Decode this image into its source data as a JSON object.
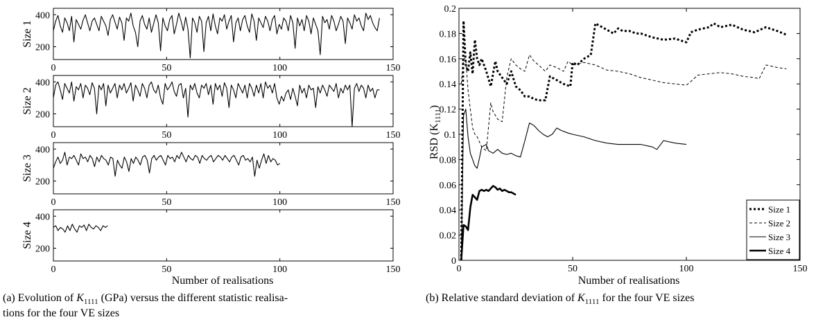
{
  "chart_data": [
    {
      "type": "line",
      "panel": "a",
      "caption_parts": [
        "(a) Evolution of ",
        "K",
        "1111",
        " (GPa) versus the different statistic realisa-"
      ],
      "caption_line2": "tions for the four VE sizes",
      "xlabel": "Number of realisations",
      "xlim": [
        0,
        150
      ],
      "x_ticks": [
        "0",
        "50",
        "100",
        "150"
      ],
      "subplots": [
        {
          "ylabel": "Size 1",
          "ylim": [
            120,
            440
          ],
          "y_ticks": [
            "200",
            "400"
          ],
          "n": 144,
          "values": [
            300,
            360,
            395,
            330,
            290,
            380,
            350,
            300,
            390,
            230,
            370,
            340,
            310,
            365,
            400,
            350,
            300,
            360,
            380,
            340,
            300,
            390,
            360,
            330,
            270,
            370,
            400,
            355,
            310,
            385,
            350,
            240,
            380,
            360,
            410,
            330,
            290,
            200,
            360,
            395,
            340,
            310,
            380,
            290,
            345,
            400,
            350,
            175,
            380,
            330,
            300,
            370,
            395,
            280,
            340,
            410,
            360,
            300,
            385,
            310,
            130,
            380,
            350,
            290,
            390,
            360,
            170,
            350,
            390,
            300,
            405,
            330,
            280,
            380,
            360,
            400,
            310,
            360,
            395,
            230,
            350,
            380,
            300,
            370,
            395,
            330,
            290,
            405,
            360,
            240,
            380,
            350,
            320,
            390,
            360,
            300,
            370,
            395,
            280,
            340,
            310,
            380,
            360,
            300,
            395,
            350,
            190,
            380,
            330,
            370,
            300,
            395,
            360,
            280,
            380,
            340,
            300,
            150,
            390,
            350,
            370,
            310,
            395,
            360,
            300,
            340,
            390,
            360,
            220,
            380,
            350,
            310,
            400,
            360,
            380,
            330,
            300,
            410,
            370,
            395,
            350,
            320,
            300,
            380
          ]
        },
        {
          "ylabel": "Size 2",
          "ylim": [
            120,
            440
          ],
          "y_ticks": [
            "200",
            "400"
          ],
          "n": 144,
          "values": [
            300,
            380,
            400,
            350,
            290,
            390,
            360,
            330,
            400,
            280,
            370,
            350,
            390,
            300,
            380,
            360,
            320,
            395,
            360,
            200,
            380,
            350,
            390,
            250,
            380,
            330,
            360,
            390,
            300,
            380,
            350,
            390,
            330,
            360,
            395,
            280,
            380,
            350,
            310,
            390,
            360,
            300,
            380,
            400,
            350,
            330,
            380,
            300,
            260,
            390,
            350,
            370,
            400,
            340,
            310,
            380,
            390,
            300,
            360,
            180,
            380,
            350,
            390,
            330,
            300,
            380,
            360,
            390,
            320,
            380,
            260,
            390,
            350,
            380,
            310,
            395,
            360,
            240,
            380,
            350,
            300,
            390,
            360,
            330,
            380,
            300,
            390,
            360,
            310,
            380,
            330,
            390,
            300,
            400,
            360,
            380,
            330,
            390,
            300,
            260,
            310,
            280,
            330,
            350,
            290,
            360,
            310,
            250,
            380,
            330,
            360,
            300,
            380,
            350,
            360,
            240,
            370,
            330,
            380,
            350,
            310,
            380,
            360,
            340,
            390,
            300,
            360,
            330,
            380,
            350,
            380,
            120,
            360,
            390,
            340,
            380,
            360,
            300,
            380,
            340,
            360,
            300,
            350,
            350
          ]
        },
        {
          "ylabel": "Size 3",
          "ylim": [
            120,
            440
          ],
          "y_ticks": [
            "200",
            "400"
          ],
          "n": 100,
          "values": [
            280,
            320,
            350,
            310,
            330,
            380,
            300,
            350,
            340,
            360,
            330,
            300,
            370,
            340,
            350,
            320,
            360,
            340,
            290,
            350,
            320,
            360,
            340,
            330,
            300,
            350,
            340,
            230,
            330,
            300,
            280,
            350,
            320,
            260,
            340,
            310,
            350,
            330,
            300,
            350,
            360,
            330,
            250,
            340,
            360,
            330,
            350,
            360,
            330,
            300,
            360,
            340,
            350,
            320,
            360,
            340,
            380,
            350,
            320,
            360,
            340,
            330,
            360,
            350,
            310,
            360,
            340,
            330,
            350,
            360,
            320,
            340,
            360,
            350,
            330,
            360,
            340,
            320,
            350,
            360,
            330,
            300,
            350,
            360,
            330,
            340,
            320,
            350,
            230,
            330,
            280,
            330,
            370,
            310,
            360,
            320,
            340,
            330,
            300,
            310
          ]
        },
        {
          "ylabel": "Size 4",
          "ylim": [
            120,
            440
          ],
          "y_ticks": [
            "200",
            "400"
          ],
          "n": 24,
          "values": [
            330,
            340,
            310,
            330,
            320,
            300,
            340,
            310,
            350,
            320,
            300,
            340,
            330,
            345,
            310,
            350,
            330,
            320,
            340,
            330,
            310,
            340,
            330,
            340
          ]
        }
      ]
    },
    {
      "type": "line",
      "panel": "b",
      "caption_parts": [
        "(b) Relative standard deviation of ",
        "K",
        "1111",
        " for the four VE sizes"
      ],
      "xlabel": "Number of realisations",
      "ylabel_parts": [
        "RSD (K",
        "1111",
        ")"
      ],
      "xlim": [
        0,
        150
      ],
      "ylim": [
        0,
        0.2
      ],
      "x_ticks": [
        "0",
        "50",
        "100",
        "150"
      ],
      "y_ticks": [
        "0",
        "0.02",
        "0.04",
        "0.06",
        "0.08",
        "0.1",
        "0.12",
        "0.14",
        "0.16",
        "0.18",
        "0.2"
      ],
      "legend_position": "bottom-right",
      "series": [
        {
          "name": "Size 1",
          "style": "dotted-thick",
          "x": [
            1,
            2,
            3,
            4,
            5,
            6,
            7,
            8,
            9,
            10,
            12,
            14,
            16,
            17,
            19,
            21,
            23,
            25,
            27,
            29,
            31,
            33,
            35,
            38,
            40,
            43,
            46,
            49,
            50,
            52,
            55,
            58,
            60,
            62,
            65,
            68,
            70,
            72,
            75,
            78,
            80,
            85,
            90,
            95,
            100,
            102,
            105,
            110,
            112,
            115,
            120,
            125,
            130,
            135,
            140,
            144
          ],
          "values": [
            0,
            0.19,
            0.155,
            0.15,
            0.165,
            0.148,
            0.175,
            0.16,
            0.155,
            0.16,
            0.15,
            0.138,
            0.158,
            0.15,
            0.145,
            0.14,
            0.15,
            0.138,
            0.135,
            0.13,
            0.13,
            0.128,
            0.127,
            0.127,
            0.146,
            0.143,
            0.14,
            0.138,
            0.157,
            0.155,
            0.16,
            0.163,
            0.188,
            0.186,
            0.183,
            0.18,
            0.184,
            0.182,
            0.182,
            0.18,
            0.18,
            0.177,
            0.175,
            0.176,
            0.173,
            0.181,
            0.183,
            0.185,
            0.188,
            0.185,
            0.187,
            0.183,
            0.181,
            0.185,
            0.182,
            0.179
          ]
        },
        {
          "name": "Size 2",
          "style": "dashed-thin",
          "x": [
            1,
            2,
            3,
            4,
            5,
            6,
            7,
            8,
            9,
            10,
            12,
            14,
            15,
            17,
            19,
            21,
            23,
            25,
            27,
            29,
            31,
            33,
            35,
            38,
            40,
            43,
            46,
            48,
            50,
            55,
            60,
            65,
            70,
            75,
            80,
            85,
            90,
            95,
            100,
            102,
            105,
            110,
            115,
            120,
            125,
            130,
            132,
            135,
            140,
            144
          ],
          "values": [
            0.14,
            0.16,
            0.16,
            0.135,
            0.12,
            0.105,
            0.1,
            0.098,
            0.094,
            0.09,
            0.087,
            0.125,
            0.118,
            0.112,
            0.11,
            0.145,
            0.16,
            0.155,
            0.152,
            0.15,
            0.163,
            0.158,
            0.155,
            0.15,
            0.155,
            0.153,
            0.15,
            0.158,
            0.155,
            0.157,
            0.155,
            0.151,
            0.15,
            0.148,
            0.145,
            0.143,
            0.141,
            0.14,
            0.139,
            0.142,
            0.147,
            0.148,
            0.149,
            0.148,
            0.146,
            0.145,
            0.144,
            0.155,
            0.153,
            0.152
          ]
        },
        {
          "name": "Size 3",
          "style": "solid-thin",
          "x": [
            1,
            2,
            3,
            4,
            5,
            6,
            7,
            8,
            9,
            10,
            12,
            13,
            15,
            17,
            19,
            21,
            23,
            25,
            27,
            29,
            31,
            33,
            35,
            37,
            39,
            41,
            43,
            45,
            48,
            50,
            55,
            60,
            65,
            70,
            75,
            80,
            85,
            87,
            90,
            95,
            100
          ],
          "values": [
            0,
            0.115,
            0.12,
            0.098,
            0.085,
            0.08,
            0.075,
            0.073,
            0.081,
            0.09,
            0.092,
            0.087,
            0.085,
            0.088,
            0.085,
            0.084,
            0.085,
            0.083,
            0.082,
            0.095,
            0.109,
            0.107,
            0.103,
            0.1,
            0.098,
            0.1,
            0.105,
            0.103,
            0.101,
            0.1,
            0.098,
            0.095,
            0.093,
            0.092,
            0.092,
            0.092,
            0.09,
            0.088,
            0.095,
            0.093,
            0.092
          ]
        },
        {
          "name": "Size 4",
          "style": "solid-thick",
          "x": [
            1,
            2,
            3,
            4,
            5,
            6,
            7,
            8,
            9,
            10,
            11,
            12,
            13,
            14,
            15,
            16,
            17,
            18,
            19,
            20,
            21,
            22,
            23,
            24,
            25
          ],
          "values": [
            0,
            0.028,
            0.027,
            0.024,
            0.042,
            0.052,
            0.05,
            0.048,
            0.055,
            0.056,
            0.055,
            0.056,
            0.055,
            0.057,
            0.059,
            0.058,
            0.056,
            0.057,
            0.055,
            0.056,
            0.055,
            0.054,
            0.054,
            0.053,
            0.052
          ]
        }
      ]
    }
  ]
}
